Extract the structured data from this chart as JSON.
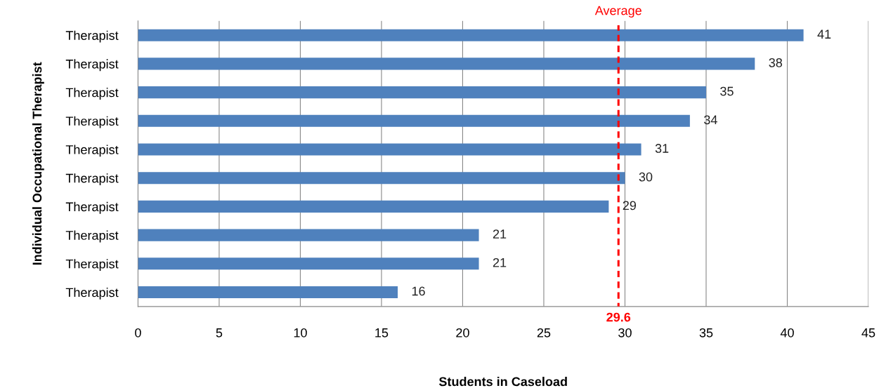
{
  "chart_data": {
    "type": "bar",
    "orientation": "horizontal",
    "xlabel": "Students in Caseload",
    "ylabel": "Individual Occupational Therapist",
    "categories": [
      "Therapist",
      "Therapist",
      "Therapist",
      "Therapist",
      "Therapist",
      "Therapist",
      "Therapist",
      "Therapist",
      "Therapist",
      "Therapist"
    ],
    "values": [
      41,
      38,
      35,
      34,
      31,
      30,
      29,
      21,
      21,
      16
    ],
    "color": "#4f81bd",
    "xlim": [
      0,
      45
    ],
    "xticks": [
      0,
      5,
      10,
      15,
      20,
      25,
      30,
      35,
      40,
      45
    ],
    "grid": "x",
    "data_labels": true,
    "ref_lines": [
      {
        "axis": "x",
        "value": 29.6,
        "label": "Average",
        "color": "#ff0000",
        "line_style": "dashed"
      }
    ],
    "annotations": [
      "29.6"
    ]
  }
}
